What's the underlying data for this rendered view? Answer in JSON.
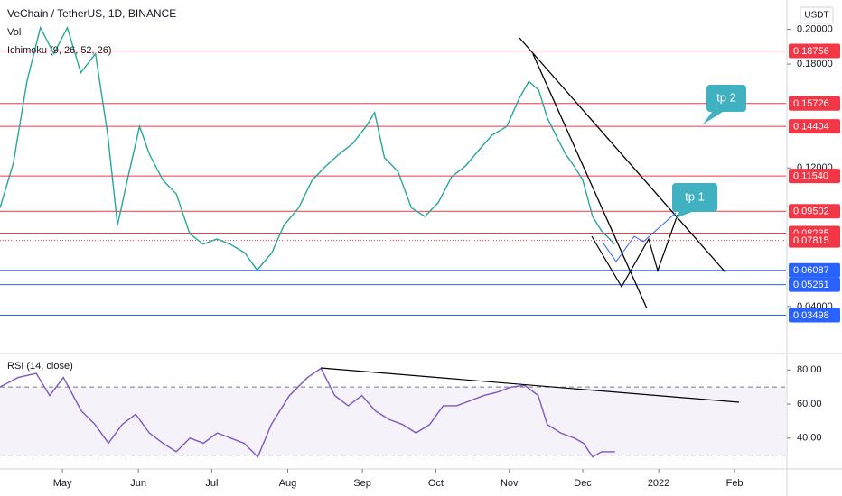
{
  "chart_data": [
    {
      "type": "line",
      "title": "VeChain / TetherUS, 1D, BINANCE",
      "indicators": [
        "Vol",
        "Ichimoku (9, 26, 52, 26)"
      ],
      "currency": "USDT",
      "color": "#26a69a",
      "x": [
        0,
        5.5,
        11,
        16.5,
        22,
        27.5,
        33,
        39,
        44,
        48,
        52,
        57,
        61,
        66.5,
        72,
        77.5,
        83,
        88.5,
        94,
        100,
        105,
        111,
        116,
        122,
        127.5,
        133,
        138.5,
        144,
        149.5,
        153,
        157,
        162.5,
        168,
        173.5,
        179,
        184.5,
        190,
        196,
        201,
        207,
        212,
        216,
        220,
        223.5,
        227,
        231,
        234.5,
        238,
        242,
        245.5,
        249,
        251
      ],
      "values": [
        0.097,
        0.123,
        0.17,
        0.201,
        0.186,
        0.201,
        0.175,
        0.186,
        0.139,
        0.087,
        0.113,
        0.144,
        0.128,
        0.113,
        0.105,
        0.082,
        0.076,
        0.079,
        0.076,
        0.071,
        0.061,
        0.071,
        0.087,
        0.097,
        0.113,
        0.121,
        0.128,
        0.134,
        0.144,
        0.152,
        0.126,
        0.118,
        0.097,
        0.092,
        0.1,
        0.115,
        0.121,
        0.131,
        0.139,
        0.144,
        0.16,
        0.17,
        0.165,
        0.149,
        0.139,
        0.128,
        0.121,
        0.113,
        0.092,
        0.084,
        0.079,
        0.076
      ],
      "xlim": [
        0,
        321
      ],
      "xticks": [
        {
          "value": 25.5,
          "label": "May"
        },
        {
          "value": 56.5,
          "label": "Jun"
        },
        {
          "value": 86.5,
          "label": "Jul"
        },
        {
          "value": 117.5,
          "label": "Aug"
        },
        {
          "value": 148,
          "label": "Sep"
        },
        {
          "value": 178,
          "label": "Oct"
        },
        {
          "value": 208,
          "label": "Nov"
        },
        {
          "value": 238,
          "label": "Dec"
        },
        {
          "value": 269,
          "label": "2022"
        },
        {
          "value": 300,
          "label": "Feb"
        }
      ],
      "ylim": [
        0.0165,
        0.217
      ],
      "yticks": [
        {
          "value": 0.2,
          "label": "0.20000"
        },
        {
          "value": 0.18,
          "label": "0.18000"
        },
        {
          "value": 0.12,
          "label": "0.12000"
        },
        {
          "value": 0.04,
          "label": "0.04000"
        }
      ],
      "levels": [
        {
          "value": 0.18756,
          "color": "#f23645"
        },
        {
          "value": 0.15726,
          "color": "#f23645"
        },
        {
          "value": 0.14404,
          "color": "#f23645"
        },
        {
          "value": 0.1154,
          "label": "0.11540",
          "color": "#f23645"
        },
        {
          "value": 0.09502,
          "color": "#f23645"
        },
        {
          "value": 0.08235,
          "color": "#f23645"
        },
        {
          "value": 0.07815,
          "color": "#f23645",
          "dotted": true
        },
        {
          "value": 0.06087,
          "color": "#2962ff"
        },
        {
          "value": 0.05261,
          "color": "#2962ff"
        },
        {
          "value": 0.03498,
          "color": "#2962ff"
        }
      ],
      "annotations": [
        "tp 1",
        "tp 2"
      ]
    },
    {
      "type": "line",
      "title": "RSI (14, close)",
      "color": "#7e57c2",
      "x": [
        0,
        7.4,
        14.8,
        20.3,
        25.9,
        33.2,
        38.8,
        44.3,
        49.9,
        55.4,
        61,
        66.5,
        72,
        77.6,
        83.1,
        88.7,
        94.2,
        99.7,
        105.3,
        110.8,
        118.2,
        125.6,
        131.1,
        136.7,
        142.2,
        147.8,
        153.3,
        158.8,
        164.4,
        169.9,
        175.5,
        181,
        186.6,
        192.1,
        197.6,
        203.2,
        208.7,
        214.3,
        219.8,
        223.5,
        229,
        234.6,
        238.3,
        242,
        245.7,
        251.2
      ],
      "values": [
        70,
        75.6,
        78,
        65,
        75.6,
        56,
        48,
        37,
        48,
        54,
        43,
        37,
        32,
        40,
        37,
        43,
        40,
        37,
        29,
        48,
        65,
        75.6,
        81,
        65,
        59,
        65,
        56,
        51,
        48,
        43,
        48,
        59,
        59,
        62,
        65,
        67,
        70,
        71,
        65,
        48,
        43,
        40,
        37,
        29,
        32,
        32
      ],
      "ylim": [
        24,
        86.5
      ],
      "yticks": [
        {
          "value": 40,
          "label": "40.00"
        },
        {
          "value": 60,
          "label": "60.00"
        },
        {
          "value": 80,
          "label": "80.00"
        }
      ],
      "band": [
        30,
        70
      ]
    }
  ]
}
